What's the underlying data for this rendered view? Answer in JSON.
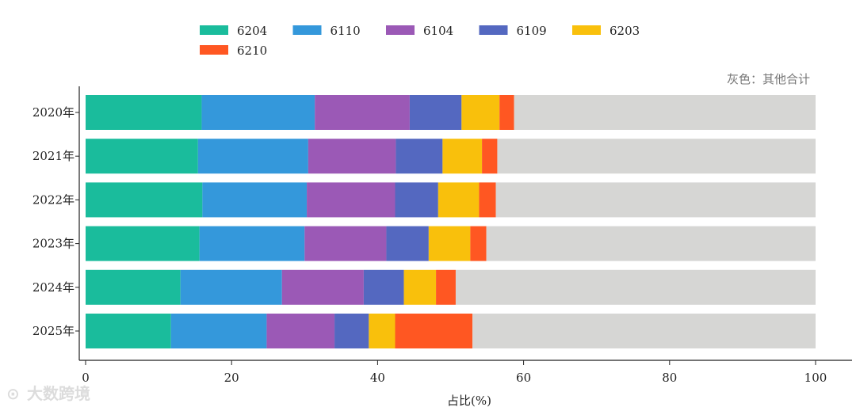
{
  "chart_data": {
    "type": "bar",
    "orientation": "horizontal",
    "stacked": true,
    "categories": [
      "2020年",
      "2021年",
      "2022年",
      "2023年",
      "2024年",
      "2025年"
    ],
    "series": [
      {
        "name": "6204",
        "color": "#1abc9c",
        "values": [
          15.9,
          15.4,
          16.0,
          15.6,
          13.0,
          11.7
        ]
      },
      {
        "name": "6110",
        "color": "#3498db",
        "values": [
          15.5,
          15.1,
          14.3,
          14.4,
          13.9,
          13.1
        ]
      },
      {
        "name": "6104",
        "color": "#9b59b6",
        "values": [
          13.0,
          12.0,
          12.1,
          11.2,
          11.2,
          9.3
        ]
      },
      {
        "name": "6109",
        "color": "#5468c0",
        "values": [
          7.1,
          6.4,
          5.9,
          5.8,
          5.5,
          4.7
        ]
      },
      {
        "name": "6203",
        "color": "#f9c00c",
        "values": [
          5.2,
          5.4,
          5.6,
          5.7,
          4.4,
          3.6
        ]
      },
      {
        "name": "6210",
        "color": "#ff5722",
        "values": [
          2.0,
          2.1,
          2.3,
          2.2,
          2.7,
          10.6
        ]
      },
      {
        "name": "其他合计",
        "color": "#d6d6d4",
        "values": [
          41.3,
          43.6,
          43.8,
          45.1,
          49.3,
          47.0
        ]
      }
    ],
    "xlim": [
      0,
      100
    ],
    "xticks": [
      0,
      20,
      40,
      60,
      80,
      100
    ],
    "xlabel": "占比(%)",
    "legend_position": "top"
  },
  "note": "灰色：其他合计",
  "watermark": "大数跨境"
}
